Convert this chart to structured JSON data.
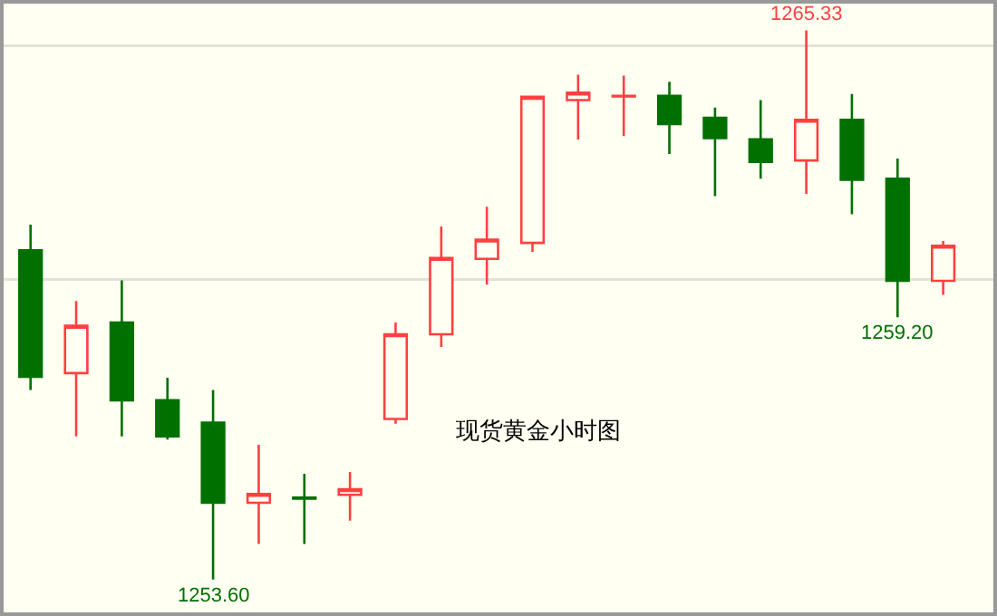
{
  "chart_data": {
    "type": "candlestick",
    "title": "现货黄金小时图",
    "categories": [
      null,
      null,
      null,
      null,
      null,
      null,
      null,
      null,
      null,
      null,
      null,
      null,
      null,
      null,
      null,
      null,
      null,
      null,
      null,
      null,
      null
    ],
    "ohlc": [
      [
        1260.63,
        1261.18,
        1257.65,
        1257.93
      ],
      [
        1258.01,
        1259.55,
        1256.66,
        1259.02
      ],
      [
        1259.09,
        1259.99,
        1256.66,
        1257.43
      ],
      [
        1257.43,
        1257.91,
        1256.59,
        1256.66
      ],
      [
        1256.95,
        1257.65,
        1253.6,
        1255.24
      ],
      [
        1255.24,
        1256.48,
        1254.36,
        1255.43
      ],
      [
        1255.35,
        1255.86,
        1254.36,
        1255.33
      ],
      [
        1255.41,
        1255.9,
        1254.86,
        1255.53
      ],
      [
        1257.03,
        1259.09,
        1256.93,
        1258.84
      ],
      [
        1258.84,
        1261.14,
        1258.57,
        1260.47
      ],
      [
        1260.45,
        1261.56,
        1259.9,
        1260.86
      ],
      [
        1260.79,
        1263.93,
        1260.6,
        1263.91
      ],
      [
        1263.84,
        1264.38,
        1263.0,
        1264.0
      ],
      [
        1263.92,
        1264.36,
        1263.07,
        1263.93
      ],
      [
        1263.93,
        1264.23,
        1262.69,
        1263.33
      ],
      [
        1263.46,
        1263.68,
        1261.79,
        1263.03
      ],
      [
        1263.0,
        1263.84,
        1262.16,
        1262.52
      ],
      [
        1262.55,
        1265.33,
        1261.84,
        1263.42
      ],
      [
        1263.42,
        1263.97,
        1261.4,
        1262.14
      ],
      [
        1262.16,
        1262.59,
        1259.2,
        1259.98
      ],
      [
        1259.98,
        1260.83,
        1259.68,
        1260.73
      ]
    ],
    "colors": [
      "#007000",
      "#ff4040",
      "#007000",
      "#007000",
      "#007000",
      "#ff4040",
      "#007000",
      "#ff4040",
      "#ff4040",
      "#ff4040",
      "#ff4040",
      "#ff4040",
      "#ff4040",
      "#ff4040",
      "#007000",
      "#007000",
      "#007000",
      "#ff4040",
      "#007000",
      "#007000",
      "#ff4040"
    ],
    "ylim": [
      1252.9,
      1265.9
    ],
    "yticks": [
      {
        "value": 1260,
        "label": null
      },
      {
        "value": 1265,
        "label": null
      }
    ],
    "grid": "y",
    "legend": false,
    "annotations": [
      {
        "text": "1265.33",
        "y": 1265.33
      },
      {
        "text": "1253.60",
        "y": 1253.6
      },
      {
        "text": "1259.20",
        "y": 1259.2
      }
    ]
  }
}
